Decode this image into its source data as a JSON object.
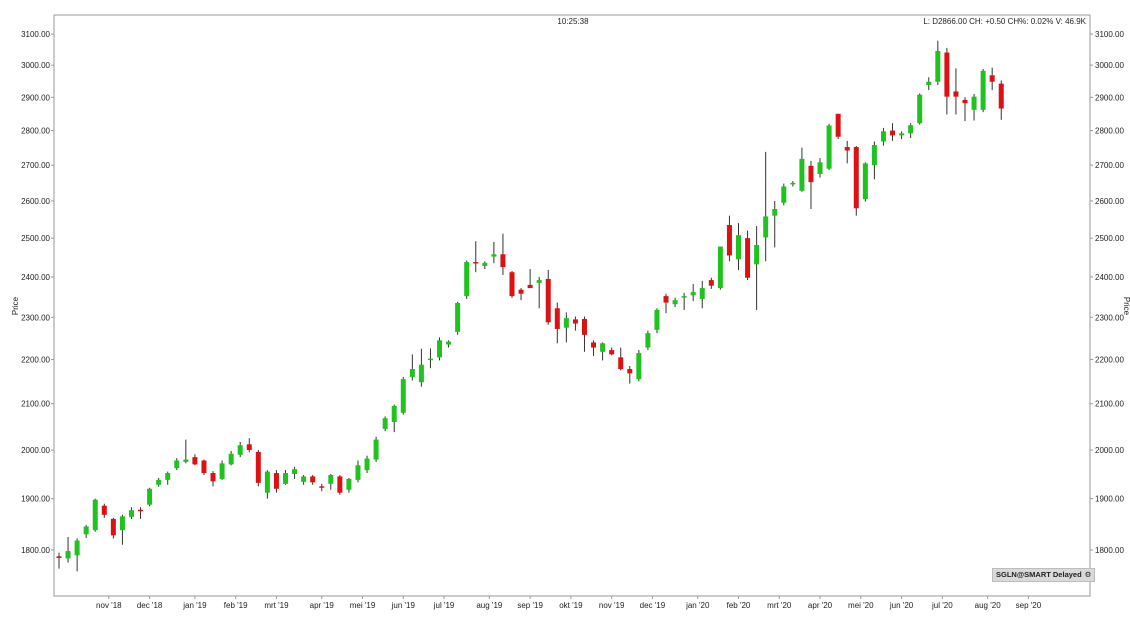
{
  "header": {
    "time": "10:25:38",
    "quote": "L: D2866.00 CH: +0.50 CH%: 0.02% V: 46.9K"
  },
  "badge": {
    "label": "SGLN@SMART Delayed",
    "icon": "gear-icon"
  },
  "colors": {
    "up": "#1ec31e",
    "down": "#dd1111",
    "wick": "#333333",
    "axis": "#999999"
  },
  "chart_data": {
    "type": "candlestick",
    "ylabel": "Price",
    "ylabel_right": "Price",
    "ylim": [
      1740,
      3120
    ],
    "y_scale": "log",
    "y_ticks": [
      "1800.00",
      "1900.00",
      "2000.00",
      "2100.00",
      "2200.00",
      "2300.00",
      "2400.00",
      "2500.00",
      "2600.00",
      "2700.00",
      "2800.00",
      "2900.00",
      "3000.00",
      "3100.00"
    ],
    "x_ticks": [
      {
        "label": "nov '18",
        "index": 5.5
      },
      {
        "label": "dec '18",
        "index": 10
      },
      {
        "label": "jan '19",
        "index": 15
      },
      {
        "label": "feb '19",
        "index": 19.5
      },
      {
        "label": "mrt '19",
        "index": 24
      },
      {
        "label": "apr '19",
        "index": 29
      },
      {
        "label": "mei '19",
        "index": 33.5
      },
      {
        "label": "jun '19",
        "index": 38
      },
      {
        "label": "jul '19",
        "index": 42.5
      },
      {
        "label": "aug '19",
        "index": 47.5
      },
      {
        "label": "sep '19",
        "index": 52
      },
      {
        "label": "okt '19",
        "index": 56.5
      },
      {
        "label": "nov '19",
        "index": 61
      },
      {
        "label": "dec '19",
        "index": 65.5
      },
      {
        "label": "jan '20",
        "index": 70.5
      },
      {
        "label": "feb '20",
        "index": 75
      },
      {
        "label": "mrt '20",
        "index": 79.5
      },
      {
        "label": "apr '20",
        "index": 84
      },
      {
        "label": "mei '20",
        "index": 88.5
      },
      {
        "label": "jun '20",
        "index": 93
      },
      {
        "label": "jul '20",
        "index": 97.5
      },
      {
        "label": "aug '20",
        "index": 102.5
      },
      {
        "label": "sep '20",
        "index": 107
      }
    ],
    "candles": [
      {
        "o": 1788,
        "h": 1795,
        "l": 1765,
        "c": 1785
      },
      {
        "o": 1784,
        "h": 1825,
        "l": 1776,
        "c": 1798
      },
      {
        "o": 1790,
        "h": 1822,
        "l": 1760,
        "c": 1818
      },
      {
        "o": 1830,
        "h": 1848,
        "l": 1823,
        "c": 1845
      },
      {
        "o": 1838,
        "h": 1900,
        "l": 1835,
        "c": 1898
      },
      {
        "o": 1886,
        "h": 1890,
        "l": 1862,
        "c": 1868
      },
      {
        "o": 1860,
        "h": 1862,
        "l": 1822,
        "c": 1828
      },
      {
        "o": 1838,
        "h": 1868,
        "l": 1810,
        "c": 1865
      },
      {
        "o": 1864,
        "h": 1883,
        "l": 1860,
        "c": 1877
      },
      {
        "o": 1878,
        "h": 1883,
        "l": 1860,
        "c": 1877
      },
      {
        "o": 1888,
        "h": 1922,
        "l": 1885,
        "c": 1920
      },
      {
        "o": 1928,
        "h": 1942,
        "l": 1924,
        "c": 1938
      },
      {
        "o": 1938,
        "h": 1955,
        "l": 1928,
        "c": 1952
      },
      {
        "o": 1962,
        "h": 1983,
        "l": 1958,
        "c": 1978
      },
      {
        "o": 1975,
        "h": 2022,
        "l": 1972,
        "c": 1980
      },
      {
        "o": 1985,
        "h": 1991,
        "l": 1968,
        "c": 1970
      },
      {
        "o": 1978,
        "h": 1980,
        "l": 1948,
        "c": 1952
      },
      {
        "o": 1952,
        "h": 1956,
        "l": 1925,
        "c": 1935
      },
      {
        "o": 1940,
        "h": 1978,
        "l": 1938,
        "c": 1972
      },
      {
        "o": 1970,
        "h": 1998,
        "l": 1968,
        "c": 1992
      },
      {
        "o": 1990,
        "h": 2017,
        "l": 1985,
        "c": 2010
      },
      {
        "o": 2012,
        "h": 2025,
        "l": 1995,
        "c": 2000
      },
      {
        "o": 1996,
        "h": 2000,
        "l": 1925,
        "c": 1932
      },
      {
        "o": 1912,
        "h": 1958,
        "l": 1900,
        "c": 1955
      },
      {
        "o": 1952,
        "h": 1958,
        "l": 1912,
        "c": 1920
      },
      {
        "o": 1930,
        "h": 1958,
        "l": 1928,
        "c": 1952
      },
      {
        "o": 1950,
        "h": 1965,
        "l": 1940,
        "c": 1960
      },
      {
        "o": 1934,
        "h": 1948,
        "l": 1928,
        "c": 1945
      },
      {
        "o": 1945,
        "h": 1948,
        "l": 1928,
        "c": 1933
      },
      {
        "o": 1925,
        "h": 1930,
        "l": 1915,
        "c": 1922
      },
      {
        "o": 1930,
        "h": 1950,
        "l": 1918,
        "c": 1948
      },
      {
        "o": 1945,
        "h": 1948,
        "l": 1908,
        "c": 1912
      },
      {
        "o": 1918,
        "h": 1942,
        "l": 1912,
        "c": 1940
      },
      {
        "o": 1938,
        "h": 1978,
        "l": 1933,
        "c": 1968
      },
      {
        "o": 1958,
        "h": 1988,
        "l": 1952,
        "c": 1982
      },
      {
        "o": 1980,
        "h": 2028,
        "l": 1975,
        "c": 2022
      },
      {
        "o": 2045,
        "h": 2072,
        "l": 2040,
        "c": 2068
      },
      {
        "o": 2060,
        "h": 2098,
        "l": 2038,
        "c": 2095
      },
      {
        "o": 2080,
        "h": 2160,
        "l": 2076,
        "c": 2155
      },
      {
        "o": 2160,
        "h": 2212,
        "l": 2152,
        "c": 2178
      },
      {
        "o": 2148,
        "h": 2225,
        "l": 2138,
        "c": 2188
      },
      {
        "o": 2200,
        "h": 2226,
        "l": 2180,
        "c": 2202
      },
      {
        "o": 2205,
        "h": 2252,
        "l": 2198,
        "c": 2245
      },
      {
        "o": 2235,
        "h": 2245,
        "l": 2228,
        "c": 2242
      },
      {
        "o": 2265,
        "h": 2338,
        "l": 2258,
        "c": 2335
      },
      {
        "o": 2352,
        "h": 2442,
        "l": 2345,
        "c": 2438
      },
      {
        "o": 2438,
        "h": 2492,
        "l": 2412,
        "c": 2435
      },
      {
        "o": 2428,
        "h": 2440,
        "l": 2420,
        "c": 2436
      },
      {
        "o": 2452,
        "h": 2490,
        "l": 2435,
        "c": 2458
      },
      {
        "o": 2458,
        "h": 2512,
        "l": 2405,
        "c": 2425
      },
      {
        "o": 2412,
        "h": 2415,
        "l": 2348,
        "c": 2352
      },
      {
        "o": 2368,
        "h": 2372,
        "l": 2342,
        "c": 2358
      },
      {
        "o": 2380,
        "h": 2420,
        "l": 2372,
        "c": 2372
      },
      {
        "o": 2385,
        "h": 2400,
        "l": 2322,
        "c": 2392
      },
      {
        "o": 2395,
        "h": 2418,
        "l": 2282,
        "c": 2288
      },
      {
        "o": 2322,
        "h": 2336,
        "l": 2238,
        "c": 2272
      },
      {
        "o": 2275,
        "h": 2312,
        "l": 2240,
        "c": 2298
      },
      {
        "o": 2295,
        "h": 2302,
        "l": 2268,
        "c": 2285
      },
      {
        "o": 2296,
        "h": 2302,
        "l": 2218,
        "c": 2258
      },
      {
        "o": 2240,
        "h": 2245,
        "l": 2208,
        "c": 2228
      },
      {
        "o": 2218,
        "h": 2240,
        "l": 2198,
        "c": 2238
      },
      {
        "o": 2222,
        "h": 2228,
        "l": 2210,
        "c": 2212
      },
      {
        "o": 2205,
        "h": 2228,
        "l": 2175,
        "c": 2178
      },
      {
        "o": 2178,
        "h": 2185,
        "l": 2145,
        "c": 2168
      },
      {
        "o": 2155,
        "h": 2222,
        "l": 2150,
        "c": 2215
      },
      {
        "o": 2228,
        "h": 2268,
        "l": 2222,
        "c": 2262
      },
      {
        "o": 2270,
        "h": 2322,
        "l": 2262,
        "c": 2318
      },
      {
        "o": 2352,
        "h": 2358,
        "l": 2310,
        "c": 2336
      },
      {
        "o": 2332,
        "h": 2348,
        "l": 2325,
        "c": 2342
      },
      {
        "o": 2352,
        "h": 2360,
        "l": 2318,
        "c": 2352
      },
      {
        "o": 2354,
        "h": 2382,
        "l": 2340,
        "c": 2362
      },
      {
        "o": 2345,
        "h": 2390,
        "l": 2322,
        "c": 2372
      },
      {
        "o": 2392,
        "h": 2398,
        "l": 2370,
        "c": 2378
      },
      {
        "o": 2372,
        "h": 2478,
        "l": 2368,
        "c": 2478
      },
      {
        "o": 2535,
        "h": 2560,
        "l": 2440,
        "c": 2455
      },
      {
        "o": 2445,
        "h": 2540,
        "l": 2418,
        "c": 2508
      },
      {
        "o": 2500,
        "h": 2520,
        "l": 2392,
        "c": 2398
      },
      {
        "o": 2432,
        "h": 2532,
        "l": 2318,
        "c": 2482
      },
      {
        "o": 2502,
        "h": 2738,
        "l": 2440,
        "c": 2558
      },
      {
        "o": 2560,
        "h": 2600,
        "l": 2476,
        "c": 2578
      },
      {
        "o": 2595,
        "h": 2648,
        "l": 2588,
        "c": 2640
      },
      {
        "o": 2648,
        "h": 2655,
        "l": 2640,
        "c": 2650
      },
      {
        "o": 2628,
        "h": 2750,
        "l": 2625,
        "c": 2718
      },
      {
        "o": 2698,
        "h": 2712,
        "l": 2578,
        "c": 2652
      },
      {
        "o": 2675,
        "h": 2720,
        "l": 2665,
        "c": 2708
      },
      {
        "o": 2690,
        "h": 2820,
        "l": 2686,
        "c": 2815
      },
      {
        "o": 2850,
        "h": 2850,
        "l": 2775,
        "c": 2782
      },
      {
        "o": 2752,
        "h": 2770,
        "l": 2705,
        "c": 2742
      },
      {
        "o": 2752,
        "h": 2755,
        "l": 2560,
        "c": 2580
      },
      {
        "o": 2605,
        "h": 2708,
        "l": 2598,
        "c": 2705
      },
      {
        "o": 2700,
        "h": 2768,
        "l": 2660,
        "c": 2758
      },
      {
        "o": 2768,
        "h": 2808,
        "l": 2756,
        "c": 2798
      },
      {
        "o": 2800,
        "h": 2822,
        "l": 2770,
        "c": 2786
      },
      {
        "o": 2786,
        "h": 2798,
        "l": 2775,
        "c": 2792
      },
      {
        "o": 2792,
        "h": 2822,
        "l": 2778,
        "c": 2816
      },
      {
        "o": 2822,
        "h": 2912,
        "l": 2818,
        "c": 2908
      },
      {
        "o": 2938,
        "h": 2962,
        "l": 2922,
        "c": 2948
      },
      {
        "o": 2948,
        "h": 3078,
        "l": 2938,
        "c": 3045
      },
      {
        "o": 3040,
        "h": 3055,
        "l": 2848,
        "c": 2902
      },
      {
        "o": 2918,
        "h": 2990,
        "l": 2848,
        "c": 2902
      },
      {
        "o": 2892,
        "h": 2900,
        "l": 2828,
        "c": 2882
      },
      {
        "o": 2862,
        "h": 2910,
        "l": 2830,
        "c": 2902
      },
      {
        "o": 2862,
        "h": 2988,
        "l": 2855,
        "c": 2982
      },
      {
        "o": 2968,
        "h": 2992,
        "l": 2922,
        "c": 2948
      },
      {
        "o": 2942,
        "h": 2952,
        "l": 2832,
        "c": 2866
      }
    ]
  }
}
